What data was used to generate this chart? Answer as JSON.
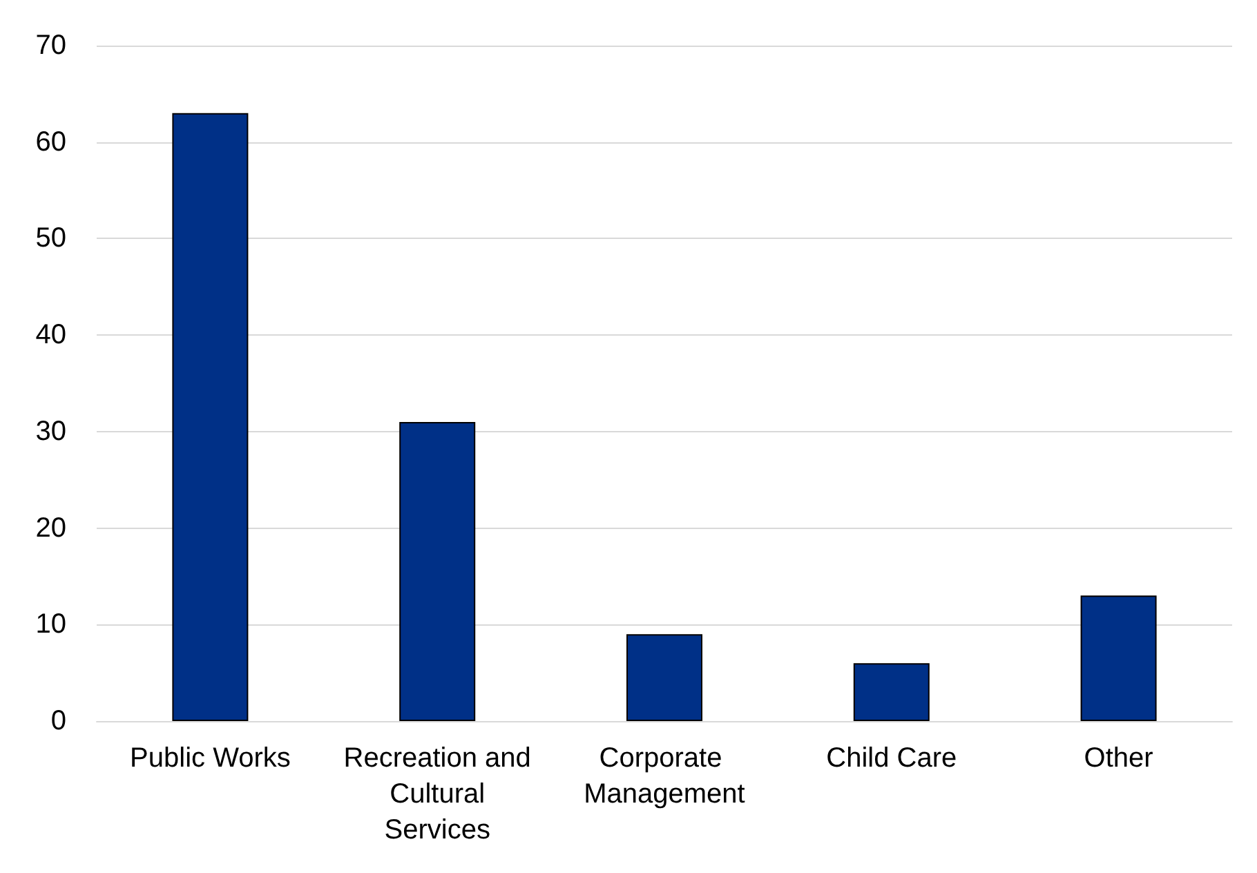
{
  "chart_data": {
    "type": "bar",
    "categories": [
      "Public Works",
      "Recreation and Cultural Services",
      "Corporate Management",
      "Child Care",
      "Other"
    ],
    "values": [
      63,
      31,
      9,
      6,
      13
    ],
    "color": "#003087",
    "ylim": [
      0,
      70
    ],
    "yticks": [
      0,
      10,
      20,
      30,
      40,
      50,
      60,
      70
    ],
    "grid": "y"
  }
}
